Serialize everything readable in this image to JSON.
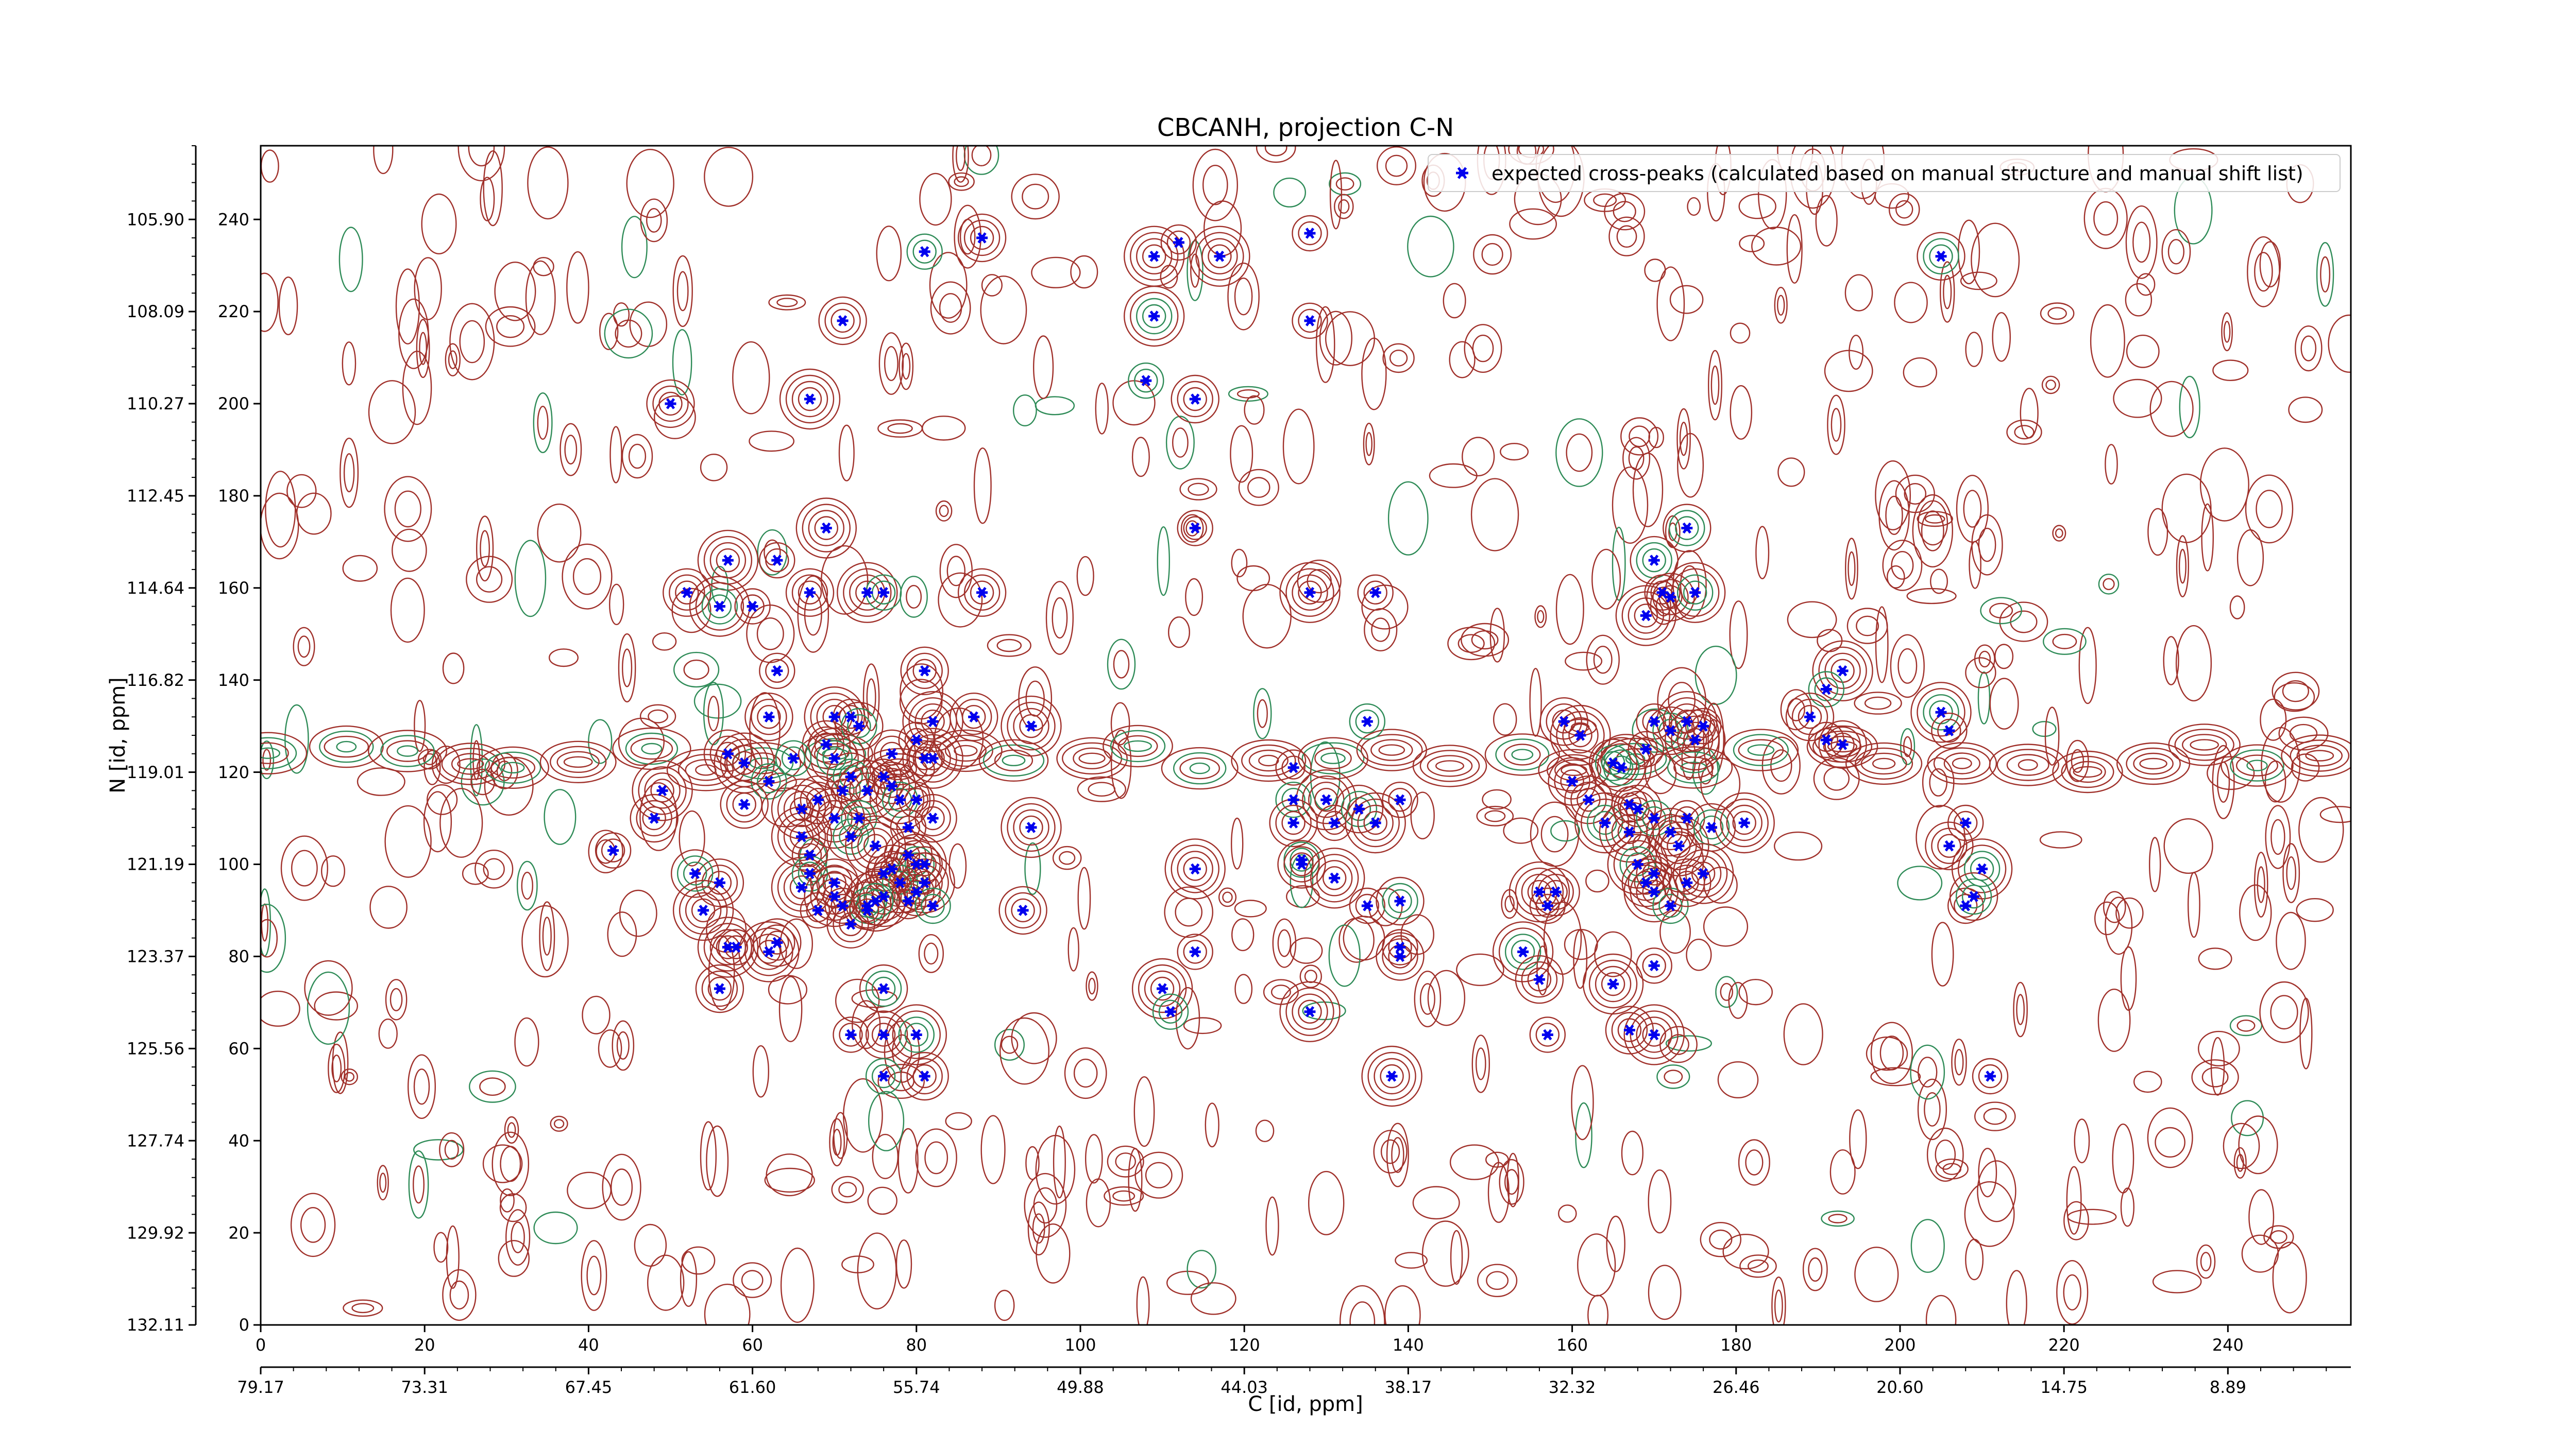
{
  "chart_data": {
    "type": "scatter",
    "title": "CBCANH, projection C-N",
    "xlabel": "C [id, ppm]",
    "ylabel": "N [id, ppm]",
    "x_index_ticks": [
      "0",
      "20",
      "40",
      "60",
      "80",
      "100",
      "120",
      "140",
      "160",
      "180",
      "200",
      "220",
      "240"
    ],
    "x_ppm_ticks": [
      "79.17",
      "73.31",
      "67.45",
      "61.60",
      "55.74",
      "49.88",
      "44.03",
      "38.17",
      "32.32",
      "26.46",
      "20.60",
      "14.75",
      "8.89"
    ],
    "y_index_ticks": [
      "0",
      "20",
      "40",
      "60",
      "80",
      "100",
      "120",
      "140",
      "160",
      "180",
      "200",
      "220",
      "240"
    ],
    "y_ppm_ticks": [
      "132.11",
      "129.92",
      "127.74",
      "125.56",
      "123.37",
      "121.19",
      "119.01",
      "116.82",
      "114.64",
      "112.45",
      "110.27",
      "108.09",
      "105.90"
    ],
    "xlim": [
      0,
      255
    ],
    "ylim": [
      0,
      256
    ],
    "grid": false,
    "legend": {
      "position": "top-right",
      "entries": [
        "expected cross-peaks (calculated based on manual structure and manual shift list)"
      ]
    },
    "colors": {
      "peak": "#0000ee",
      "contour_positive": "#a0302a",
      "contour_negative": "#2e8b57"
    },
    "series": [
      {
        "name": "expected cross-peaks (calculated based on manual structure and manual shift list)",
        "points": [
          [
            81,
            233
          ],
          [
            88,
            236
          ],
          [
            117,
            232
          ],
          [
            128,
            237
          ],
          [
            205,
            232
          ],
          [
            109,
            232
          ],
          [
            112,
            235
          ],
          [
            71,
            218
          ],
          [
            109,
            219
          ],
          [
            128,
            218
          ],
          [
            50,
            200
          ],
          [
            67,
            201
          ],
          [
            108,
            205
          ],
          [
            114,
            201
          ],
          [
            69,
            173
          ],
          [
            114,
            173
          ],
          [
            174,
            173
          ],
          [
            57,
            166
          ],
          [
            63,
            166
          ],
          [
            52,
            159
          ],
          [
            56,
            156
          ],
          [
            60,
            156
          ],
          [
            67,
            159
          ],
          [
            74,
            159
          ],
          [
            76,
            159
          ],
          [
            88,
            159
          ],
          [
            128,
            159
          ],
          [
            136,
            159
          ],
          [
            170,
            166
          ],
          [
            169,
            154
          ],
          [
            171,
            159
          ],
          [
            172,
            158
          ],
          [
            175,
            159
          ],
          [
            63,
            142
          ],
          [
            81,
            142
          ],
          [
            193,
            142
          ],
          [
            191,
            138
          ],
          [
            62,
            132
          ],
          [
            70,
            132
          ],
          [
            72,
            132
          ],
          [
            73,
            130
          ],
          [
            82,
            131
          ],
          [
            80,
            127
          ],
          [
            69,
            126
          ],
          [
            70,
            123
          ],
          [
            81,
            123
          ],
          [
            87,
            132
          ],
          [
            94,
            130
          ],
          [
            135,
            131
          ],
          [
            159,
            131
          ],
          [
            161,
            128
          ],
          [
            170,
            131
          ],
          [
            172,
            129
          ],
          [
            174,
            131
          ],
          [
            176,
            130
          ],
          [
            189,
            132
          ],
          [
            205,
            133
          ],
          [
            206,
            129
          ],
          [
            57,
            124
          ],
          [
            59,
            122
          ],
          [
            65,
            123
          ],
          [
            77,
            124
          ],
          [
            82,
            123
          ],
          [
            126,
            121
          ],
          [
            165,
            122
          ],
          [
            175,
            127
          ],
          [
            169,
            125
          ],
          [
            160,
            118
          ],
          [
            166,
            121
          ],
          [
            191,
            127
          ],
          [
            193,
            126
          ],
          [
            49,
            116
          ],
          [
            62,
            118
          ],
          [
            59,
            113
          ],
          [
            66,
            112
          ],
          [
            71,
            116
          ],
          [
            72,
            119
          ],
          [
            74,
            116
          ],
          [
            76,
            119
          ],
          [
            77,
            117
          ],
          [
            78,
            114
          ],
          [
            80,
            114
          ],
          [
            68,
            114
          ],
          [
            70,
            110
          ],
          [
            73,
            110
          ],
          [
            82,
            110
          ],
          [
            66,
            106
          ],
          [
            67,
            102
          ],
          [
            72,
            106
          ],
          [
            75,
            104
          ],
          [
            79,
            108
          ],
          [
            79,
            102
          ],
          [
            80,
            100
          ],
          [
            81,
            100
          ],
          [
            48,
            110
          ],
          [
            94,
            108
          ],
          [
            126,
            114
          ],
          [
            126,
            109
          ],
          [
            130,
            114
          ],
          [
            131,
            109
          ],
          [
            134,
            112
          ],
          [
            136,
            109
          ],
          [
            139,
            114
          ],
          [
            162,
            114
          ],
          [
            164,
            109
          ],
          [
            167,
            113
          ],
          [
            168,
            112
          ],
          [
            167,
            107
          ],
          [
            170,
            110
          ],
          [
            172,
            107
          ],
          [
            173,
            104
          ],
          [
            174,
            110
          ],
          [
            177,
            108
          ],
          [
            181,
            109
          ],
          [
            208,
            109
          ],
          [
            206,
            104
          ],
          [
            210,
            99
          ],
          [
            43,
            103
          ],
          [
            56,
            96
          ],
          [
            66,
            95
          ],
          [
            67,
            98
          ],
          [
            70,
            96
          ],
          [
            70,
            93
          ],
          [
            71,
            91
          ],
          [
            74,
            91
          ],
          [
            76,
            93
          ],
          [
            76,
            98
          ],
          [
            77,
            99
          ],
          [
            78,
            96
          ],
          [
            79,
            92
          ],
          [
            80,
            94
          ],
          [
            81,
            96
          ],
          [
            82,
            91
          ],
          [
            63,
            83
          ],
          [
            57,
            82
          ],
          [
            58,
            82
          ],
          [
            53,
            98
          ],
          [
            54,
            90
          ],
          [
            68,
            90
          ],
          [
            72,
            87
          ],
          [
            75,
            92
          ],
          [
            74,
            90
          ],
          [
            93,
            90
          ],
          [
            114,
            99
          ],
          [
            127,
            101
          ],
          [
            127,
            100
          ],
          [
            131,
            97
          ],
          [
            135,
            91
          ],
          [
            139,
            92
          ],
          [
            156,
            94
          ],
          [
            157,
            91
          ],
          [
            158,
            94
          ],
          [
            168,
            100
          ],
          [
            170,
            98
          ],
          [
            169,
            96
          ],
          [
            170,
            94
          ],
          [
            172,
            91
          ],
          [
            174,
            96
          ],
          [
            176,
            98
          ],
          [
            208,
            91
          ],
          [
            209,
            93
          ],
          [
            62,
            81
          ],
          [
            139,
            82
          ],
          [
            139,
            80
          ],
          [
            154,
            81
          ],
          [
            114,
            81
          ],
          [
            56,
            73
          ],
          [
            110,
            73
          ],
          [
            111,
            68
          ],
          [
            156,
            75
          ],
          [
            165,
            74
          ],
          [
            170,
            78
          ],
          [
            76,
            73
          ],
          [
            128,
            68
          ],
          [
            72,
            63
          ],
          [
            76,
            63
          ],
          [
            80,
            63
          ],
          [
            157,
            63
          ],
          [
            167,
            64
          ],
          [
            170,
            63
          ],
          [
            76,
            54
          ],
          [
            81,
            54
          ],
          [
            138,
            54
          ],
          [
            211,
            54
          ]
        ]
      }
    ]
  }
}
